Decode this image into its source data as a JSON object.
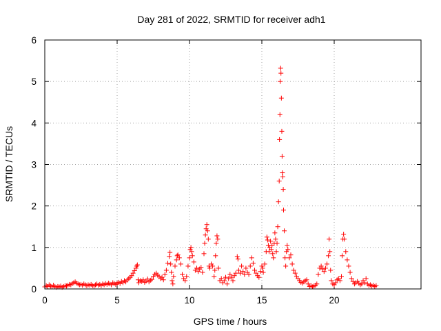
{
  "chart_data": {
    "type": "scatter",
    "title": "Day 281 of 2022, SRMTID for receiver adh1",
    "xlabel": "GPS time / hours",
    "ylabel": "SRMTID / TECUs",
    "xlim": [
      0,
      26
    ],
    "ylim": [
      0,
      6
    ],
    "x_ticks": [
      0,
      5,
      10,
      15,
      20
    ],
    "y_ticks": [
      0,
      1,
      2,
      3,
      4,
      5,
      6
    ],
    "grid": true,
    "marker": "+",
    "marker_color": "#ff0000",
    "series": [
      {
        "name": "adh1",
        "points": [
          [
            0.0,
            0.05
          ],
          [
            0.1,
            0.08
          ],
          [
            0.2,
            0.06
          ],
          [
            0.3,
            0.1
          ],
          [
            0.4,
            0.07
          ],
          [
            0.5,
            0.05
          ],
          [
            0.6,
            0.09
          ],
          [
            0.7,
            0.06
          ],
          [
            0.8,
            0.04
          ],
          [
            0.9,
            0.06
          ],
          [
            1.0,
            0.05
          ],
          [
            1.1,
            0.07
          ],
          [
            1.2,
            0.04
          ],
          [
            1.3,
            0.06
          ],
          [
            1.4,
            0.08
          ],
          [
            1.5,
            0.07
          ],
          [
            1.6,
            0.09
          ],
          [
            1.7,
            0.11
          ],
          [
            1.8,
            0.1
          ],
          [
            1.9,
            0.13
          ],
          [
            2.0,
            0.15
          ],
          [
            2.1,
            0.17
          ],
          [
            2.2,
            0.14
          ],
          [
            2.3,
            0.12
          ],
          [
            2.4,
            0.1
          ],
          [
            2.5,
            0.11
          ],
          [
            2.6,
            0.09
          ],
          [
            2.7,
            0.12
          ],
          [
            2.8,
            0.1
          ],
          [
            2.9,
            0.08
          ],
          [
            3.0,
            0.1
          ],
          [
            3.1,
            0.09
          ],
          [
            3.2,
            0.11
          ],
          [
            3.3,
            0.08
          ],
          [
            3.4,
            0.07
          ],
          [
            3.5,
            0.1
          ],
          [
            3.6,
            0.12
          ],
          [
            3.7,
            0.09
          ],
          [
            3.8,
            0.11
          ],
          [
            3.9,
            0.08
          ],
          [
            4.0,
            0.12
          ],
          [
            4.1,
            0.1
          ],
          [
            4.2,
            0.13
          ],
          [
            4.3,
            0.11
          ],
          [
            4.4,
            0.14
          ],
          [
            4.5,
            0.12
          ],
          [
            4.6,
            0.1
          ],
          [
            4.7,
            0.15
          ],
          [
            4.8,
            0.13
          ],
          [
            4.9,
            0.11
          ],
          [
            5.0,
            0.14
          ],
          [
            5.1,
            0.16
          ],
          [
            5.2,
            0.13
          ],
          [
            5.3,
            0.18
          ],
          [
            5.4,
            0.15
          ],
          [
            5.5,
            0.2
          ],
          [
            5.6,
            0.17
          ],
          [
            5.7,
            0.22
          ],
          [
            5.8,
            0.25
          ],
          [
            5.9,
            0.28
          ],
          [
            6.0,
            0.32
          ],
          [
            6.1,
            0.38
          ],
          [
            6.2,
            0.44
          ],
          [
            6.3,
            0.5
          ],
          [
            6.35,
            0.55
          ],
          [
            6.4,
            0.58
          ],
          [
            6.45,
            0.22
          ],
          [
            6.5,
            0.15
          ],
          [
            6.6,
            0.2
          ],
          [
            6.7,
            0.18
          ],
          [
            6.8,
            0.22
          ],
          [
            6.9,
            0.16
          ],
          [
            7.0,
            0.19
          ],
          [
            7.1,
            0.24
          ],
          [
            7.2,
            0.17
          ],
          [
            7.3,
            0.21
          ],
          [
            7.4,
            0.23
          ],
          [
            7.5,
            0.3
          ],
          [
            7.6,
            0.35
          ],
          [
            7.7,
            0.38
          ],
          [
            7.8,
            0.33
          ],
          [
            7.9,
            0.3
          ],
          [
            8.0,
            0.25
          ],
          [
            8.1,
            0.28
          ],
          [
            8.2,
            0.22
          ],
          [
            8.3,
            0.35
          ],
          [
            8.4,
            0.45
          ],
          [
            8.5,
            0.62
          ],
          [
            8.6,
            0.78
          ],
          [
            8.65,
            0.88
          ],
          [
            8.7,
            0.6
          ],
          [
            8.75,
            0.4
          ],
          [
            8.8,
            0.2
          ],
          [
            8.85,
            0.12
          ],
          [
            8.9,
            0.3
          ],
          [
            9.0,
            0.55
          ],
          [
            9.1,
            0.7
          ],
          [
            9.15,
            0.8
          ],
          [
            9.2,
            0.82
          ],
          [
            9.3,
            0.75
          ],
          [
            9.4,
            0.6
          ],
          [
            9.5,
            0.35
          ],
          [
            9.6,
            0.25
          ],
          [
            9.7,
            0.2
          ],
          [
            9.8,
            0.3
          ],
          [
            9.9,
            0.55
          ],
          [
            10.0,
            0.75
          ],
          [
            10.05,
            0.95
          ],
          [
            10.1,
            1.0
          ],
          [
            10.15,
            0.9
          ],
          [
            10.2,
            0.8
          ],
          [
            10.3,
            0.65
          ],
          [
            10.4,
            0.45
          ],
          [
            10.5,
            0.5
          ],
          [
            10.6,
            0.42
          ],
          [
            10.7,
            0.48
          ],
          [
            10.8,
            0.52
          ],
          [
            10.9,
            0.4
          ],
          [
            11.0,
            0.85
          ],
          [
            11.05,
            1.1
          ],
          [
            11.1,
            1.3
          ],
          [
            11.15,
            1.45
          ],
          [
            11.2,
            1.55
          ],
          [
            11.25,
            1.4
          ],
          [
            11.3,
            1.2
          ],
          [
            11.35,
            0.55
          ],
          [
            11.4,
            0.5
          ],
          [
            11.5,
            0.6
          ],
          [
            11.6,
            0.55
          ],
          [
            11.7,
            0.3
          ],
          [
            11.75,
            0.45
          ],
          [
            11.8,
            0.8
          ],
          [
            11.85,
            1.1
          ],
          [
            11.9,
            1.28
          ],
          [
            11.95,
            1.2
          ],
          [
            12.0,
            0.5
          ],
          [
            12.1,
            0.2
          ],
          [
            12.2,
            0.25
          ],
          [
            12.3,
            0.15
          ],
          [
            12.4,
            0.2
          ],
          [
            12.5,
            0.28
          ],
          [
            12.6,
            0.12
          ],
          [
            12.7,
            0.25
          ],
          [
            12.8,
            0.35
          ],
          [
            12.9,
            0.28
          ],
          [
            13.0,
            0.2
          ],
          [
            13.1,
            0.32
          ],
          [
            13.2,
            0.38
          ],
          [
            13.3,
            0.78
          ],
          [
            13.35,
            0.72
          ],
          [
            13.4,
            0.45
          ],
          [
            13.5,
            0.38
          ],
          [
            13.6,
            0.55
          ],
          [
            13.7,
            0.42
          ],
          [
            13.8,
            0.35
          ],
          [
            13.9,
            0.5
          ],
          [
            14.0,
            0.4
          ],
          [
            14.1,
            0.35
          ],
          [
            14.2,
            0.55
          ],
          [
            14.3,
            0.75
          ],
          [
            14.4,
            0.62
          ],
          [
            14.5,
            0.45
          ],
          [
            14.6,
            0.38
          ],
          [
            14.7,
            0.32
          ],
          [
            14.8,
            0.28
          ],
          [
            14.9,
            0.42
          ],
          [
            15.0,
            0.55
          ],
          [
            15.05,
            0.5
          ],
          [
            15.1,
            0.4
          ],
          [
            15.2,
            0.6
          ],
          [
            15.3,
            0.9
          ],
          [
            15.35,
            1.25
          ],
          [
            15.4,
            1.18
          ],
          [
            15.45,
            1.05
          ],
          [
            15.5,
            0.9
          ],
          [
            15.55,
            1.0
          ],
          [
            15.6,
            1.15
          ],
          [
            15.65,
            0.95
          ],
          [
            15.7,
            1.05
          ],
          [
            15.75,
            0.85
          ],
          [
            15.8,
            0.75
          ],
          [
            15.85,
            1.1
          ],
          [
            15.9,
            1.35
          ],
          [
            15.95,
            1.2
          ],
          [
            16.0,
            0.9
          ],
          [
            16.05,
            1.1
          ],
          [
            16.1,
            1.5
          ],
          [
            16.15,
            2.1
          ],
          [
            16.2,
            2.6
          ],
          [
            16.22,
            3.6
          ],
          [
            16.25,
            4.2
          ],
          [
            16.27,
            5.0
          ],
          [
            16.3,
            5.32
          ],
          [
            16.32,
            5.2
          ],
          [
            16.35,
            4.6
          ],
          [
            16.38,
            3.8
          ],
          [
            16.4,
            3.2
          ],
          [
            16.42,
            2.8
          ],
          [
            16.45,
            2.7
          ],
          [
            16.48,
            2.4
          ],
          [
            16.5,
            1.9
          ],
          [
            16.55,
            1.4
          ],
          [
            16.6,
            0.75
          ],
          [
            16.65,
            0.55
          ],
          [
            16.7,
            0.9
          ],
          [
            16.75,
            1.05
          ],
          [
            16.8,
            0.95
          ],
          [
            16.9,
            0.75
          ],
          [
            17.0,
            0.82
          ],
          [
            17.1,
            0.6
          ],
          [
            17.2,
            0.45
          ],
          [
            17.3,
            0.38
          ],
          [
            17.4,
            0.3
          ],
          [
            17.5,
            0.25
          ],
          [
            17.6,
            0.2
          ],
          [
            17.7,
            0.16
          ],
          [
            17.8,
            0.14
          ],
          [
            17.9,
            0.17
          ],
          [
            18.0,
            0.2
          ],
          [
            18.1,
            0.22
          ],
          [
            18.2,
            0.12
          ],
          [
            18.3,
            0.06
          ],
          [
            18.4,
            0.08
          ],
          [
            18.5,
            0.05
          ],
          [
            18.6,
            0.07
          ],
          [
            18.7,
            0.09
          ],
          [
            18.8,
            0.12
          ],
          [
            18.9,
            0.35
          ],
          [
            19.0,
            0.5
          ],
          [
            19.1,
            0.55
          ],
          [
            19.2,
            0.48
          ],
          [
            19.3,
            0.42
          ],
          [
            19.4,
            0.5
          ],
          [
            19.5,
            0.6
          ],
          [
            19.6,
            0.8
          ],
          [
            19.65,
            1.2
          ],
          [
            19.7,
            0.9
          ],
          [
            19.75,
            0.45
          ],
          [
            19.8,
            0.2
          ],
          [
            19.9,
            0.12
          ],
          [
            20.0,
            0.1
          ],
          [
            20.1,
            0.15
          ],
          [
            20.2,
            0.22
          ],
          [
            20.3,
            0.25
          ],
          [
            20.4,
            0.2
          ],
          [
            20.5,
            0.3
          ],
          [
            20.55,
            0.8
          ],
          [
            20.6,
            1.2
          ],
          [
            20.65,
            1.32
          ],
          [
            20.7,
            1.2
          ],
          [
            20.8,
            0.9
          ],
          [
            20.9,
            0.7
          ],
          [
            21.0,
            0.55
          ],
          [
            21.1,
            0.4
          ],
          [
            21.2,
            0.25
          ],
          [
            21.3,
            0.18
          ],
          [
            21.4,
            0.12
          ],
          [
            21.5,
            0.15
          ],
          [
            21.6,
            0.18
          ],
          [
            21.7,
            0.14
          ],
          [
            21.8,
            0.1
          ],
          [
            21.9,
            0.12
          ],
          [
            22.0,
            0.2
          ],
          [
            22.1,
            0.15
          ],
          [
            22.2,
            0.25
          ],
          [
            22.3,
            0.12
          ],
          [
            22.4,
            0.08
          ],
          [
            22.5,
            0.1
          ],
          [
            22.6,
            0.07
          ],
          [
            22.7,
            0.09
          ],
          [
            22.8,
            0.06
          ],
          [
            22.9,
            0.08
          ]
        ]
      }
    ]
  }
}
